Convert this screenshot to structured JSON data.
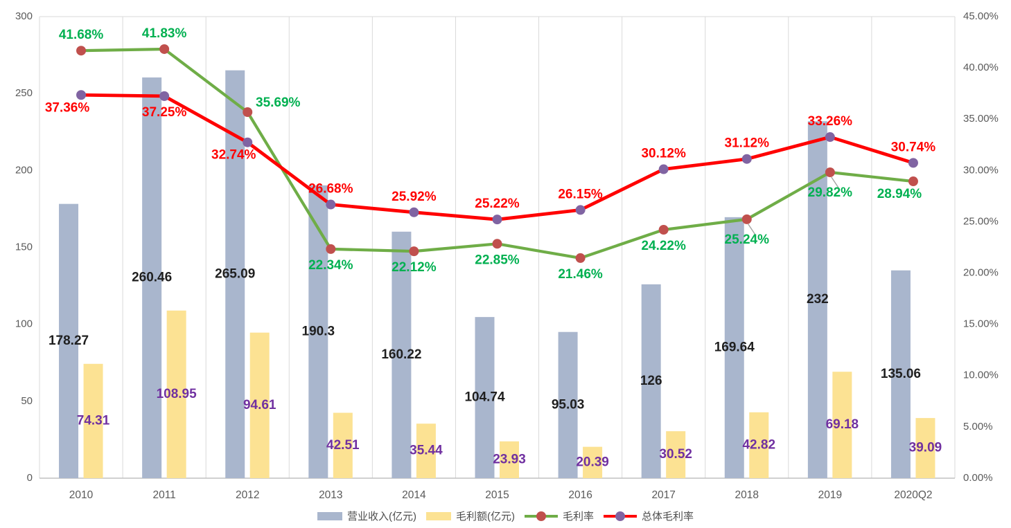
{
  "chart_data": {
    "type": "combo-bar-line",
    "categories": [
      "2010",
      "2011",
      "2012",
      "2013",
      "2014",
      "2015",
      "2016",
      "2017",
      "2018",
      "2019",
      "2020Q2"
    ],
    "series": [
      {
        "name": "营业收入(亿元)",
        "type": "bar",
        "axis": "left",
        "color": "#a9b6cd",
        "label_color": "#1f1f1f",
        "values": [
          178.27,
          260.46,
          265.09,
          190.3,
          160.22,
          104.74,
          95.03,
          126,
          169.64,
          232,
          135.06
        ],
        "labels": [
          "178.27",
          "260.46",
          "265.09",
          "190.3",
          "160.22",
          "104.74",
          "95.03",
          "126",
          "169.64",
          "232",
          "135.06"
        ]
      },
      {
        "name": "毛利额(亿元)",
        "type": "bar",
        "axis": "left",
        "color": "#fce293",
        "label_color": "#7030a0",
        "values": [
          74.31,
          108.95,
          94.61,
          42.51,
          35.44,
          23.93,
          20.39,
          30.52,
          42.82,
          69.18,
          39.09
        ],
        "labels": [
          "74.31",
          "108.95",
          "94.61",
          "42.51",
          "35.44",
          "23.93",
          "20.39",
          "30.52",
          "42.82",
          "69.18",
          "39.09"
        ]
      },
      {
        "name": "毛利率",
        "type": "line",
        "axis": "right",
        "color": "#6fad47",
        "marker_color": "#c0504d",
        "label_color": "#00b050",
        "values": [
          41.68,
          41.83,
          35.69,
          22.34,
          22.12,
          22.85,
          21.46,
          24.22,
          25.24,
          29.82,
          28.94
        ],
        "labels": [
          "41.68%",
          "41.83%",
          "35.69%",
          "22.34%",
          "22.12%",
          "22.85%",
          "21.46%",
          "24.22%",
          "25.24%",
          "29.82%",
          "28.94%"
        ],
        "label_placement": [
          "above",
          "above",
          "right",
          "below",
          "below",
          "below",
          "below",
          "below",
          "below-leader",
          "below-leader",
          "below-left"
        ]
      },
      {
        "name": "总体毛利率",
        "type": "line",
        "axis": "right",
        "color": "#ff0000",
        "marker_color": "#8064a2",
        "label_color": "#ff0000",
        "values": [
          37.36,
          37.25,
          32.74,
          26.68,
          25.92,
          25.22,
          26.15,
          30.12,
          31.12,
          33.26,
          30.74
        ],
        "labels": [
          "37.36%",
          "37.25%",
          "32.74%",
          "26.68%",
          "25.92%",
          "25.22%",
          "26.15%",
          "30.12%",
          "31.12%",
          "33.26%",
          "30.74%"
        ],
        "label_placement": [
          "below-left",
          "below",
          "below-left",
          "above",
          "above",
          "above",
          "above",
          "above",
          "above",
          "above",
          "above"
        ]
      }
    ],
    "left_axis": {
      "min": 0,
      "max": 300,
      "tick_step": 50,
      "tick_labels": [
        "0",
        "50",
        "100",
        "150",
        "200",
        "250",
        "300"
      ]
    },
    "right_axis": {
      "min": 0,
      "max": 45,
      "tick_step": 5,
      "tick_labels": [
        "0.00%",
        "5.00%",
        "10.00%",
        "15.00%",
        "20.00%",
        "25.00%",
        "30.00%",
        "35.00%",
        "40.00%",
        "45.00%"
      ]
    },
    "grid": {
      "vertical": true,
      "horizontal": false
    },
    "legend": {
      "position": "bottom",
      "items": [
        "营业收入(亿元)",
        "毛利额(亿元)",
        "毛利率",
        "总体毛利率"
      ]
    }
  },
  "colors": {
    "background": "#ffffff",
    "axis_text": "#595959",
    "grid_line": "#d9d9d9",
    "axis_line": "#c0c0c0",
    "leader_line": "#a6a6a6"
  }
}
